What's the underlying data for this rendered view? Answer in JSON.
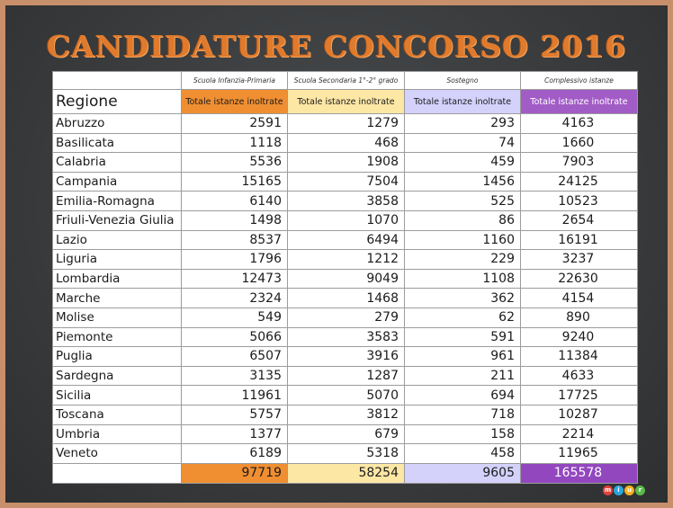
{
  "title": "CANDIDATURE CONCORSO 2016",
  "header": {
    "group_labels": [
      "Scuola Infanzia-Primaria",
      "Scuola Secondaria 1°-2° grado",
      "Sostegno",
      "Complessivo istanze"
    ],
    "region_label": "Regione",
    "sub_labels": [
      "Totale istanze inoltrate",
      "Totale istanze inoltrate",
      "Totale istanze inoltrate",
      "Totale istanze inoltrate"
    ]
  },
  "rows": [
    {
      "region": "Abruzzo",
      "v": [
        "2591",
        "1279",
        "293",
        "4163"
      ]
    },
    {
      "region": "Basilicata",
      "v": [
        "1118",
        "468",
        "74",
        "1660"
      ]
    },
    {
      "region": "Calabria",
      "v": [
        "5536",
        "1908",
        "459",
        "7903"
      ]
    },
    {
      "region": "Campania",
      "v": [
        "15165",
        "7504",
        "1456",
        "24125"
      ]
    },
    {
      "region": "Emilia-Romagna",
      "v": [
        "6140",
        "3858",
        "525",
        "10523"
      ]
    },
    {
      "region": "Friuli-Venezia Giulia",
      "v": [
        "1498",
        "1070",
        "86",
        "2654"
      ]
    },
    {
      "region": "Lazio",
      "v": [
        "8537",
        "6494",
        "1160",
        "16191"
      ]
    },
    {
      "region": "Liguria",
      "v": [
        "1796",
        "1212",
        "229",
        "3237"
      ]
    },
    {
      "region": "Lombardia",
      "v": [
        "12473",
        "9049",
        "1108",
        "22630"
      ]
    },
    {
      "region": "Marche",
      "v": [
        "2324",
        "1468",
        "362",
        "4154"
      ]
    },
    {
      "region": "Molise",
      "v": [
        "549",
        "279",
        "62",
        "890"
      ]
    },
    {
      "region": "Piemonte",
      "v": [
        "5066",
        "3583",
        "591",
        "9240"
      ]
    },
    {
      "region": "Puglia",
      "v": [
        "6507",
        "3916",
        "961",
        "11384"
      ]
    },
    {
      "region": "Sardegna",
      "v": [
        "3135",
        "1287",
        "211",
        "4633"
      ]
    },
    {
      "region": "Sicilia",
      "v": [
        "11961",
        "5070",
        "694",
        "17725"
      ]
    },
    {
      "region": "Toscana",
      "v": [
        "5757",
        "3812",
        "718",
        "10287"
      ]
    },
    {
      "region": "Umbria",
      "v": [
        "1377",
        "679",
        "158",
        "2214"
      ]
    },
    {
      "region": "Veneto",
      "v": [
        "6189",
        "5318",
        "458",
        "11965"
      ]
    }
  ],
  "totals": [
    "97719",
    "58254",
    "9605",
    "165578"
  ],
  "colors": {
    "orange": "#f08f32",
    "yellow": "#fde7a5",
    "lavender": "#d4d1fb",
    "purple": "#a25cc6",
    "title": "#e07a2c",
    "board": "#3a3c3e",
    "frame": "#c7906a"
  },
  "logo": {
    "letters": [
      "m",
      "i",
      "u",
      "r"
    ],
    "colors": [
      "#e6413a",
      "#2aa7df",
      "#f5b320",
      "#5cb947"
    ]
  }
}
